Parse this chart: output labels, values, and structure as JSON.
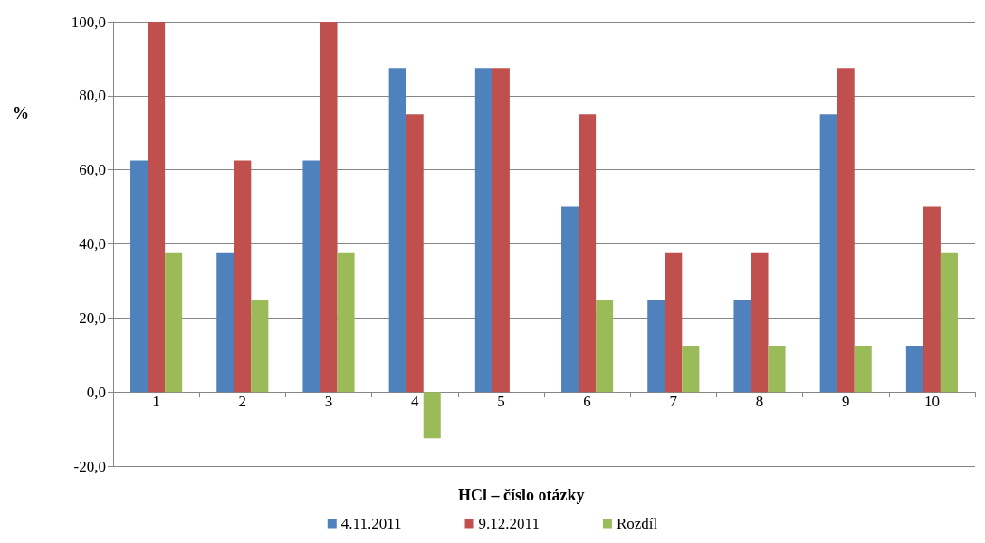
{
  "chart_data": {
    "type": "bar",
    "xlabel": "HCl – číslo otázky",
    "ylabel": "%",
    "categories": [
      "1",
      "2",
      "3",
      "4",
      "5",
      "6",
      "7",
      "8",
      "9",
      "10"
    ],
    "series": [
      {
        "name": "4.11.2011",
        "color": "#4f81bd",
        "values": [
          62.5,
          37.5,
          62.5,
          87.5,
          87.5,
          50,
          25,
          25,
          75,
          12.5
        ]
      },
      {
        "name": "9.12.2011",
        "color": "#c0504d",
        "values": [
          100,
          62.5,
          100,
          75,
          87.5,
          75,
          37.5,
          37.5,
          87.5,
          50
        ]
      },
      {
        "name": "Rozdíl",
        "color": "#9bbb59",
        "values": [
          37.5,
          25,
          37.5,
          -12.5,
          0,
          25,
          12.5,
          12.5,
          12.5,
          37.5
        ]
      }
    ],
    "ylim": [
      -20,
      100
    ],
    "yticks": [
      {
        "value": -20,
        "label": "-20,0"
      },
      {
        "value": 0,
        "label": "0,0"
      },
      {
        "value": 20,
        "label": "20,0"
      },
      {
        "value": 40,
        "label": "40,0"
      },
      {
        "value": 60,
        "label": "60,0"
      },
      {
        "value": 80,
        "label": "80,0"
      },
      {
        "value": 100,
        "label": "100,0"
      }
    ],
    "grid": "y",
    "legend": "bottom"
  }
}
